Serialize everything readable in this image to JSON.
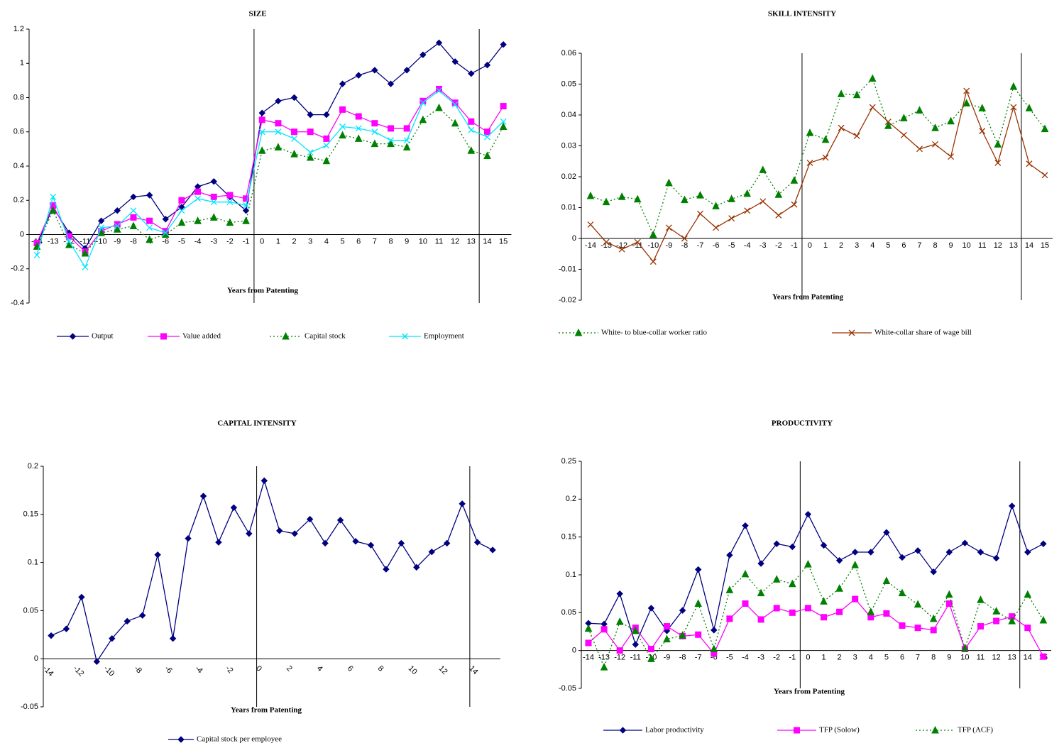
{
  "chart_data": [
    {
      "type": "line",
      "title": "SIZE",
      "x_label": "Years from Patenting",
      "categories": [
        "-14",
        "-13",
        "-12",
        "-11",
        "-10",
        "-9",
        "-8",
        "-7",
        "-6",
        "-5",
        "-4",
        "-3",
        "-2",
        "-1",
        "0",
        "1",
        "2",
        "3",
        "4",
        "5",
        "6",
        "7",
        "8",
        "9",
        "10",
        "11",
        "12",
        "13",
        "14",
        "15"
      ],
      "ylim": [
        -0.4,
        1.2
      ],
      "yticks": [
        -0.4,
        -0.2,
        0,
        0.2,
        0.4,
        0.6,
        0.8,
        1,
        1.2
      ],
      "series": [
        {
          "name": "Output",
          "color": "#000080",
          "marker": "diamond",
          "line_style": "solid",
          "values": [
            -0.06,
            0.16,
            0.01,
            -0.08,
            0.08,
            0.14,
            0.22,
            0.23,
            0.09,
            0.16,
            0.28,
            0.31,
            0.22,
            0.14,
            0.71,
            0.78,
            0.8,
            0.7,
            0.7,
            0.88,
            0.93,
            0.96,
            0.88,
            0.96,
            1.05,
            1.12,
            1.01,
            0.94,
            0.99,
            1.11
          ]
        },
        {
          "name": "Value added",
          "color": "#ff00ff",
          "marker": "square",
          "line_style": "solid",
          "values": [
            -0.05,
            0.17,
            -0.01,
            -0.1,
            0.02,
            0.06,
            0.1,
            0.08,
            0.02,
            0.2,
            0.25,
            0.22,
            0.23,
            0.21,
            0.67,
            0.65,
            0.6,
            0.6,
            0.56,
            0.73,
            0.69,
            0.65,
            0.62,
            0.62,
            0.78,
            0.85,
            0.77,
            0.66,
            0.6,
            0.75
          ]
        },
        {
          "name": "Capital stock",
          "color": "#008000",
          "marker": "triangle",
          "line_style": "dotted",
          "values": [
            -0.07,
            0.14,
            -0.06,
            -0.11,
            0.01,
            0.03,
            0.05,
            -0.03,
            0,
            0.07,
            0.08,
            0.1,
            0.07,
            0.08,
            0.49,
            0.51,
            0.47,
            0.45,
            0.43,
            0.58,
            0.56,
            0.53,
            0.53,
            0.51,
            0.67,
            0.74,
            0.65,
            0.49,
            0.46,
            0.63
          ]
        },
        {
          "name": "Employment",
          "color": "#00e5ff",
          "marker": "x",
          "line_style": "solid",
          "values": [
            -0.12,
            0.22,
            -0.04,
            -0.19,
            0.04,
            0.05,
            0.14,
            0.04,
            0.01,
            0.14,
            0.21,
            0.19,
            0.19,
            0.17,
            0.6,
            0.6,
            0.56,
            0.48,
            0.52,
            0.63,
            0.62,
            0.6,
            0.55,
            0.55,
            0.77,
            0.84,
            0.76,
            0.61,
            0.57,
            0.66
          ]
        }
      ]
    },
    {
      "type": "line",
      "title": "SKILL INTENSITY",
      "x_label": "Years from Patenting",
      "categories": [
        "-14",
        "-13",
        "-12",
        "-11",
        "-10",
        "-9",
        "-8",
        "-7",
        "-6",
        "-5",
        "-4",
        "-3",
        "-2",
        "-1",
        "0",
        "1",
        "2",
        "3",
        "4",
        "5",
        "6",
        "7",
        "8",
        "9",
        "10",
        "11",
        "12",
        "13",
        "14",
        "15"
      ],
      "ylim": [
        -0.02,
        0.06
      ],
      "yticks": [
        -0.02,
        -0.01,
        0,
        0.01,
        0.02,
        0.03,
        0.04,
        0.05,
        0.06
      ],
      "series": [
        {
          "name": "White- to blue-collar worker ratio",
          "color": "#008000",
          "marker": "triangle",
          "line_style": "dotted",
          "values": [
            0.0138,
            0.0118,
            0.0135,
            0.0127,
            0.0012,
            0.018,
            0.0125,
            0.014,
            0.0105,
            0.0128,
            0.0145,
            0.0222,
            0.0142,
            0.0188,
            0.0342,
            0.032,
            0.0468,
            0.0465,
            0.0518,
            0.0365,
            0.039,
            0.0415,
            0.0358,
            0.038,
            0.0438,
            0.0422,
            0.0305,
            0.0492,
            0.0422,
            0.0355
          ]
        },
        {
          "name": "White-collar share of wage bill",
          "color": "#993300",
          "marker": "x",
          "line_style": "solid",
          "values": [
            0.0045,
            -0.0012,
            -0.0035,
            -0.0012,
            -0.0075,
            0.0035,
            0,
            0.008,
            0.0035,
            0.0065,
            0.009,
            0.012,
            0.0075,
            0.011,
            0.0245,
            0.0262,
            0.0358,
            0.0332,
            0.0425,
            0.0378,
            0.0335,
            0.029,
            0.0305,
            0.0265,
            0.0478,
            0.0348,
            0.0245,
            0.0425,
            0.0242,
            0.0205
          ]
        }
      ]
    },
    {
      "type": "line",
      "title": "CAPITAL INTENSITY",
      "x_label": "Years from Patenting",
      "categories": [
        "-14",
        null,
        "-12",
        null,
        "-10",
        null,
        "-8",
        null,
        "-6",
        null,
        "-4",
        null,
        "-2",
        null,
        "0",
        null,
        "2",
        null,
        "4",
        null,
        "6",
        null,
        "8",
        null,
        "10",
        null,
        "12",
        null,
        "14",
        null
      ],
      "ylim": [
        -0.05,
        0.2
      ],
      "yticks": [
        -0.05,
        0,
        0.05,
        0.1,
        0.15,
        0.2
      ],
      "series": [
        {
          "name": "Capital stock per employee",
          "color": "#000080",
          "marker": "diamond",
          "line_style": "solid",
          "values": [
            0.024,
            0.031,
            0.064,
            -0.003,
            0.021,
            0.039,
            0.045,
            0.108,
            0.021,
            0.125,
            0.169,
            0.121,
            0.157,
            0.13,
            0.185,
            0.133,
            0.13,
            0.145,
            0.12,
            0.144,
            0.122,
            0.118,
            0.093,
            0.12,
            0.095,
            0.111,
            0.12,
            0.161,
            0.121,
            0.113
          ]
        }
      ]
    },
    {
      "type": "line",
      "title": "PRODUCTIVITY",
      "x_label": "Years from Patenting",
      "categories": [
        "-14",
        "-13",
        "-12",
        "-11",
        "-10",
        "-9",
        "-8",
        "-7",
        "-6",
        "-5",
        "-4",
        "-3",
        "-2",
        "-1",
        "0",
        "1",
        "2",
        "3",
        "4",
        "5",
        "6",
        "7",
        "8",
        "9",
        "10",
        "11",
        "12",
        "13",
        "14",
        "15"
      ],
      "ylim": [
        -0.05,
        0.25
      ],
      "yticks": [
        -0.05,
        0,
        0.05,
        0.1,
        0.15,
        0.2,
        0.25
      ],
      "series": [
        {
          "name": "Labor productivity",
          "color": "#000080",
          "marker": "diamond",
          "line_style": "solid",
          "values": [
            0.036,
            0.035,
            0.075,
            0.008,
            0.056,
            0.026,
            0.053,
            0.107,
            0.027,
            0.126,
            0.165,
            0.115,
            0.141,
            0.137,
            0.18,
            0.139,
            0.119,
            0.13,
            0.13,
            0.156,
            0.123,
            0.132,
            0.104,
            0.13,
            0.142,
            0.13,
            0.122,
            0.191,
            0.13,
            0.141
          ]
        },
        {
          "name": "TFP (Solow)",
          "color": "#ff00ff",
          "marker": "square",
          "line_style": "solid",
          "values": [
            0.01,
            0.028,
            0,
            0.03,
            0.002,
            0.032,
            0.019,
            0.021,
            -0.004,
            0.042,
            0.062,
            0.041,
            0.056,
            0.05,
            0.056,
            0.044,
            0.051,
            0.068,
            0.044,
            0.049,
            0.033,
            0.03,
            0.027,
            0.062,
            0.002,
            0.032,
            0.039,
            0.045,
            0.03,
            -0.008
          ]
        },
        {
          "name": "TFP (ACF)",
          "color": "#008000",
          "marker": "triangle",
          "line_style": "dotted",
          "values": [
            0.029,
            -0.022,
            0.038,
            0.026,
            -0.011,
            0.015,
            0.02,
            0.062,
            0.002,
            0.08,
            0.101,
            0.076,
            0.094,
            0.088,
            0.114,
            0.065,
            0.082,
            0.113,
            0.051,
            0.092,
            0.076,
            0.061,
            0.042,
            0.074,
            0.003,
            0.067,
            0.052,
            0.039,
            0.074,
            0.04
          ]
        }
      ]
    }
  ]
}
